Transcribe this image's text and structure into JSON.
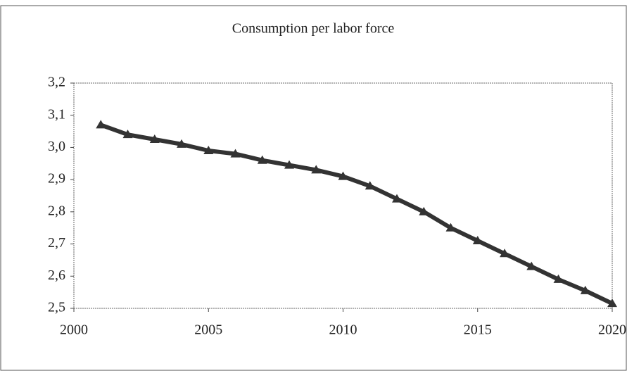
{
  "chart_data": {
    "type": "line",
    "title": "Consumption per labor force",
    "x": [
      2001,
      2002,
      2003,
      2004,
      2005,
      2006,
      2007,
      2008,
      2009,
      2010,
      2011,
      2012,
      2013,
      2014,
      2015,
      2016,
      2017,
      2018,
      2019,
      2020
    ],
    "series": [
      {
        "name": "Consumption per labor force",
        "color": "#333333",
        "values": [
          3.07,
          3.04,
          3.025,
          3.01,
          2.99,
          2.98,
          2.96,
          2.945,
          2.93,
          2.91,
          2.88,
          2.84,
          2.8,
          2.75,
          2.71,
          2.67,
          2.63,
          2.59,
          2.555,
          2.515
        ]
      }
    ],
    "xlim": [
      2000,
      2020
    ],
    "xticks": [
      2000,
      2005,
      2010,
      2015,
      2020
    ],
    "ylim": [
      2.5,
      3.2
    ],
    "yticks": [
      {
        "value": 2.5,
        "label": "2,5"
      },
      {
        "value": 2.6,
        "label": "2,6"
      },
      {
        "value": 2.7,
        "label": "2,7"
      },
      {
        "value": 2.8,
        "label": "2,8"
      },
      {
        "value": 2.9,
        "label": "2,9"
      },
      {
        "value": 3.0,
        "label": "3,0"
      },
      {
        "value": 3.1,
        "label": "3,1"
      },
      {
        "value": 3.2,
        "label": "3,2"
      }
    ],
    "grid": false
  }
}
